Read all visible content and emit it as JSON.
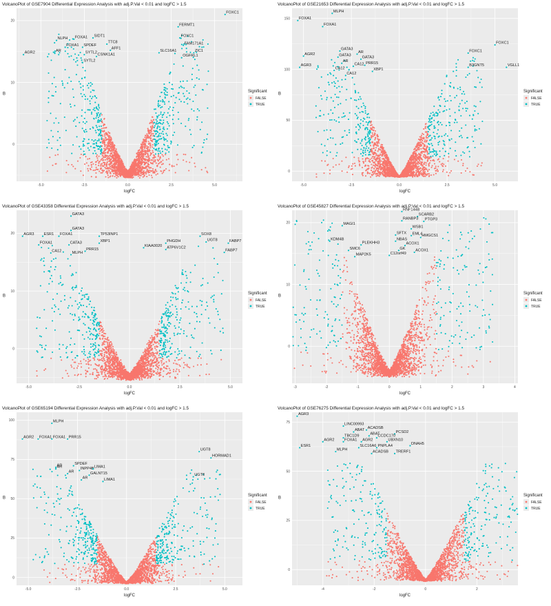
{
  "legend": {
    "title": "Significant",
    "false_label": "FALSE",
    "true_label": "TRUE"
  },
  "colors": {
    "false": "#f8766d",
    "true": "#00bfc4",
    "panel_bg": "#ebebeb",
    "grid": "#ffffff"
  },
  "chart_data": [
    {
      "type": "scatter",
      "title": "VolcanoPlot of GSE7904 Differential Expression Analysis with adj.P.Val < 0.01 and logFC > 1.5",
      "xlabel": "logFC",
      "ylabel": "B",
      "xlim": [
        -6.4,
        6.6
      ],
      "ylim": [
        -6,
        22
      ],
      "xticks": [
        -5,
        -2.5,
        0,
        2.5,
        5
      ],
      "xticklabels": [
        "-5.0",
        "-2.5",
        "0.0",
        "2.5",
        "5.0"
      ],
      "yticks": [
        0,
        10,
        20
      ],
      "yticklabels": [
        "0",
        "10",
        "20"
      ],
      "volcano": {
        "width": 2.2,
        "floor": -5.5,
        "top": 16,
        "sig_fc": 1.5,
        "seed": 11
      },
      "genes": [
        {
          "label": "FOXC1",
          "x": 5.6,
          "y": 21
        },
        {
          "label": "FERMT1",
          "x": 2.9,
          "y": 19
        },
        {
          "label": "SIDT1",
          "x": -2.0,
          "y": 17.2
        },
        {
          "label": "FOXA1",
          "x": -3.1,
          "y": 17.0
        },
        {
          "label": "NLPH",
          "x": -4.1,
          "y": 16.8
        },
        {
          "label": "FOXC1",
          "x": 3.0,
          "y": 17.2
        },
        {
          "label": "TTC8",
          "x": -1.2,
          "y": 16.2
        },
        {
          "label": "SPDEF",
          "x": -2.6,
          "y": 15.7
        },
        {
          "label": "FOXA1",
          "x": -3.6,
          "y": 15.7
        },
        {
          "label": "FAM171A1",
          "x": 3.2,
          "y": 16.0
        },
        {
          "label": "AFF1",
          "x": -1.0,
          "y": 15.2
        },
        {
          "label": "AR",
          "x": -4.2,
          "y": 14.8
        },
        {
          "label": "SYTL2",
          "x": -2.5,
          "y": 14.5
        },
        {
          "label": "CSNK1A1",
          "x": -1.8,
          "y": 14.2
        },
        {
          "label": "SLC16A1",
          "x": 1.8,
          "y": 14.8
        },
        {
          "label": "ZIC1",
          "x": 3.8,
          "y": 14.8
        },
        {
          "label": "AGR2",
          "x": -6.0,
          "y": 14.5
        },
        {
          "label": "SYTL2",
          "x": -2.6,
          "y": 13.2
        },
        {
          "label": "OGFRL1",
          "x": 3.1,
          "y": 14.0
        }
      ]
    },
    {
      "type": "scatter",
      "title": "VolcanoPlot of GSE21653 Differential Expression Analysis with adj.P.Val < 0.01 and logFC > 1.5",
      "xlabel": "logFC",
      "ylabel": "B",
      "xlim": [
        -5.6,
        6.2
      ],
      "ylim": [
        -10,
        160
      ],
      "xticks": [
        -5,
        -2.5,
        0,
        2.5,
        5
      ],
      "xticklabels": [
        "-5.0",
        "-2.5",
        "0.0",
        "2.5",
        "5.0"
      ],
      "yticks": [
        0,
        50,
        100,
        150
      ],
      "yticklabels": [
        "0",
        "50",
        "100",
        "150"
      ],
      "volcano": {
        "width": 2.0,
        "floor": -6,
        "top": 105,
        "sig_fc": 1.5,
        "seed": 23
      },
      "genes": [
        {
          "label": "MLPH",
          "x": -3.5,
          "y": 155
        },
        {
          "label": "FOXA1",
          "x": -5.3,
          "y": 148
        },
        {
          "label": "FOXA1",
          "x": -4.0,
          "y": 142
        },
        {
          "label": "FOXC1",
          "x": 5.0,
          "y": 124
        },
        {
          "label": "FOXC1",
          "x": 3.6,
          "y": 116
        },
        {
          "label": "AGR2",
          "x": -5.0,
          "y": 113
        },
        {
          "label": "GATA3",
          "x": -3.1,
          "y": 118
        },
        {
          "label": "AR",
          "x": -2.2,
          "y": 115
        },
        {
          "label": "GATA3",
          "x": -3.2,
          "y": 112
        },
        {
          "label": "GATA3",
          "x": -2.0,
          "y": 110
        },
        {
          "label": "AR",
          "x": -3.0,
          "y": 106
        },
        {
          "label": "CA12",
          "x": -2.4,
          "y": 103
        },
        {
          "label": "PRR15",
          "x": -1.8,
          "y": 104
        },
        {
          "label": "AGR3",
          "x": -5.2,
          "y": 102
        },
        {
          "label": "CA12",
          "x": -3.4,
          "y": 99
        },
        {
          "label": "XBP1",
          "x": -1.4,
          "y": 98
        },
        {
          "label": "B3GNT5",
          "x": 3.6,
          "y": 102
        },
        {
          "label": "VGLL1",
          "x": 5.6,
          "y": 102
        },
        {
          "label": "CA12",
          "x": -2.8,
          "y": 94
        }
      ]
    },
    {
      "type": "scatter",
      "title": "VolcanoPlot of GSE43358 Differential Expression Analysis with adj.P.Val < 0.01 and logFC > 1.5",
      "xlabel": "logFC",
      "ylabel": "B",
      "xlim": [
        -5.6,
        5.6
      ],
      "ylim": [
        -6,
        24
      ],
      "xticks": [
        -5,
        -2.5,
        0,
        2.5,
        5
      ],
      "xticklabels": [
        "-5.0",
        "-2.5",
        "0.0",
        "2.5",
        "5.0"
      ],
      "yticks": [
        0,
        10,
        20
      ],
      "yticklabels": [
        "0",
        "10",
        "20"
      ],
      "volcano": {
        "width": 2.2,
        "floor": -5.5,
        "top": 16,
        "sig_fc": 1.5,
        "seed": 37
      },
      "genes": [
        {
          "label": "GATA3",
          "x": -2.9,
          "y": 23
        },
        {
          "label": "GATA3",
          "x": -2.9,
          "y": 20.5
        },
        {
          "label": "AGR3",
          "x": -5.3,
          "y": 19.5
        },
        {
          "label": "ESR1",
          "x": -4.3,
          "y": 19.5
        },
        {
          "label": "FOXA1",
          "x": -3.5,
          "y": 19.5
        },
        {
          "label": "TP53INP1",
          "x": -1.5,
          "y": 19.5
        },
        {
          "label": "SOX8",
          "x": 3.5,
          "y": 19.5
        },
        {
          "label": "UGT8",
          "x": 3.8,
          "y": 18.5
        },
        {
          "label": "FABP7",
          "x": 4.9,
          "y": 18.3
        },
        {
          "label": "XBP1",
          "x": -1.5,
          "y": 18.3
        },
        {
          "label": "FOXA1",
          "x": -4.5,
          "y": 18.0
        },
        {
          "label": "CATA3",
          "x": -3.0,
          "y": 18.0
        },
        {
          "label": "PHGDH",
          "x": 1.8,
          "y": 18.3
        },
        {
          "label": "KIAA0020",
          "x": 0.7,
          "y": 17.5
        },
        {
          "label": "ATP6V1C2",
          "x": 1.8,
          "y": 17.2
        },
        {
          "label": "FABP7",
          "x": 4.7,
          "y": 16.7
        },
        {
          "label": "CA12",
          "x": -3.9,
          "y": 16.6
        },
        {
          "label": "PRR15",
          "x": -2.2,
          "y": 16.9
        },
        {
          "label": "MLPH",
          "x": -2.9,
          "y": 16.3
        }
      ]
    },
    {
      "type": "scatter",
      "title": "VolcanoPlot of GSE45827 Differential Expression Analysis with adj.P.Val < 0.01 and logFC > 1.5",
      "xlabel": "logFC",
      "ylabel": "B",
      "xlim": [
        -3.1,
        4.1
      ],
      "ylim": [
        -6,
        22
      ],
      "xticks": [
        -3,
        -2,
        -1,
        0,
        1,
        2,
        3,
        4
      ],
      "xticklabels": [
        "-3",
        "-2",
        "-1",
        "0",
        "1",
        "2",
        "3",
        "4"
      ],
      "yticks": [
        0,
        10,
        20
      ],
      "yticklabels": [
        "0",
        "10",
        "20"
      ],
      "volcano": {
        "width": 1.3,
        "floor": -5,
        "top": 19,
        "sig_fc": 1.5,
        "seed": 41
      },
      "genes": [
        {
          "label": "RNF144B",
          "x": 0.4,
          "y": 21.8
        },
        {
          "label": "SCARB2",
          "x": 0.9,
          "y": 21.0
        },
        {
          "label": "PTGP3",
          "x": 1.1,
          "y": 20.2
        },
        {
          "label": "RANBP3",
          "x": 0.4,
          "y": 20.3
        },
        {
          "label": "MAGI1",
          "x": -1.5,
          "y": 19.5
        },
        {
          "label": "WSB1",
          "x": 0.7,
          "y": 19.0
        },
        {
          "label": "HMGCS1",
          "x": 1.0,
          "y": 17.6
        },
        {
          "label": "EML4",
          "x": 0.7,
          "y": 17.9
        },
        {
          "label": "SFTX",
          "x": 0.2,
          "y": 18.0
        },
        {
          "label": "KDM4B",
          "x": -1.9,
          "y": 17.0
        },
        {
          "label": "PLEKHH3",
          "x": -0.9,
          "y": 16.4
        },
        {
          "label": "NBAS",
          "x": 0.2,
          "y": 17.0
        },
        {
          "label": "ACOX1",
          "x": 0.5,
          "y": 16.3
        },
        {
          "label": "SMC6",
          "x": -1.3,
          "y": 15.5
        },
        {
          "label": "GK",
          "x": 0.3,
          "y": 15.5
        },
        {
          "label": "ACOX1",
          "x": 0.8,
          "y": 15.2
        },
        {
          "label": "C12orf49",
          "x": 0.0,
          "y": 14.7
        },
        {
          "label": "MAP2K5",
          "x": -1.1,
          "y": 14.5
        }
      ]
    },
    {
      "type": "scatter",
      "title": "VolcanoPlot of GSE65194 Differential Expression Analysis with adj.P.Val < 0.01 and logFC > 1.5",
      "xlabel": "logFC",
      "ylabel": "B",
      "xlim": [
        -5.6,
        5.9
      ],
      "ylim": [
        -5,
        105
      ],
      "xticks": [
        -5,
        -2.5,
        0,
        2.5,
        5
      ],
      "xticklabels": [
        "-5.0",
        "-2.5",
        "0.0",
        "2.5",
        "5.0"
      ],
      "yticks": [
        0,
        25,
        50,
        75,
        100
      ],
      "yticklabels": [
        "0",
        "25",
        "50",
        "75",
        "100"
      ],
      "volcano": {
        "width": 2.3,
        "floor": -4,
        "top": 65,
        "sig_fc": 1.5,
        "seed": 53
      },
      "genes": [
        {
          "label": "MLPH",
          "x": -3.8,
          "y": 98
        },
        {
          "label": "AGR2",
          "x": -5.3,
          "y": 88
        },
        {
          "label": "FOXA1",
          "x": -4.5,
          "y": 88
        },
        {
          "label": "FOXA1",
          "x": -3.8,
          "y": 88
        },
        {
          "label": "PRR15",
          "x": -3.0,
          "y": 88
        },
        {
          "label": "UGT8",
          "x": 3.7,
          "y": 80
        },
        {
          "label": "HORMAD1",
          "x": 4.3,
          "y": 76
        },
        {
          "label": "SPDEF",
          "x": -2.7,
          "y": 71
        },
        {
          "label": "AR",
          "x": -3.6,
          "y": 70
        },
        {
          "label": "AR",
          "x": -3.6,
          "y": 69
        },
        {
          "label": "INPP4B",
          "x": -2.4,
          "y": 68
        },
        {
          "label": "LIMA1",
          "x": -1.7,
          "y": 69
        },
        {
          "label": "AR",
          "x": -3.0,
          "y": 66
        },
        {
          "label": "GALNT15",
          "x": -1.9,
          "y": 65
        },
        {
          "label": "AR",
          "x": -2.3,
          "y": 62
        },
        {
          "label": "LIMA1",
          "x": -1.2,
          "y": 61
        },
        {
          "label": "UGT8",
          "x": 3.4,
          "y": 64
        }
      ]
    },
    {
      "type": "scatter",
      "title": "VolcanoPlot of GSE76275 Differential Expression Analysis with adj.P.Val < 0.01 and logFC > 1.5",
      "xlabel": "logFC",
      "ylabel": "B",
      "xlim": [
        -5.2,
        3.6
      ],
      "ylim": [
        -8,
        80
      ],
      "xticks": [
        -4,
        -2,
        0,
        2
      ],
      "xticklabels": [
        "-4",
        "-2",
        "0",
        "2"
      ],
      "yticks": [
        0,
        25,
        50,
        75
      ],
      "yticklabels": [
        "0",
        "25",
        "50",
        "75"
      ],
      "volcano": {
        "width": 1.7,
        "floor": -6,
        "top": 52,
        "sig_fc": 1.5,
        "seed": 67
      },
      "genes": [
        {
          "label": "AGR3",
          "x": -5.0,
          "y": 78
        },
        {
          "label": "LINC00993",
          "x": -3.2,
          "y": 73
        },
        {
          "label": "ACADSB",
          "x": -2.3,
          "y": 71
        },
        {
          "label": "ABAT",
          "x": -2.8,
          "y": 70
        },
        {
          "label": "PCSD2",
          "x": -1.2,
          "y": 69
        },
        {
          "label": "ABAT",
          "x": -2.2,
          "y": 68
        },
        {
          "label": "TBC1D9",
          "x": -3.2,
          "y": 67
        },
        {
          "label": "CCDC170",
          "x": -1.9,
          "y": 67
        },
        {
          "label": "AGR2",
          "x": -4.0,
          "y": 65
        },
        {
          "label": "FOXA1",
          "x": -3.2,
          "y": 65
        },
        {
          "label": "AGR2",
          "x": -2.5,
          "y": 65
        },
        {
          "label": "UBXN10",
          "x": -1.5,
          "y": 65
        },
        {
          "label": "ESR1",
          "x": -4.9,
          "y": 62
        },
        {
          "label": "SLC16A6",
          "x": -2.6,
          "y": 62
        },
        {
          "label": "PNPLA4",
          "x": -1.9,
          "y": 62
        },
        {
          "label": "DNAH5",
          "x": -0.6,
          "y": 63
        },
        {
          "label": "MLPH",
          "x": -3.5,
          "y": 60
        },
        {
          "label": "ACADSB",
          "x": -2.1,
          "y": 59
        },
        {
          "label": "TRERF1",
          "x": -1.2,
          "y": 59
        }
      ]
    }
  ]
}
